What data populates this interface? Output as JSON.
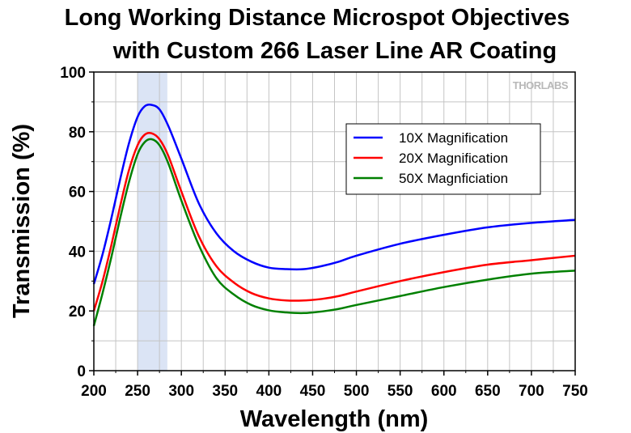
{
  "chart_data": {
    "type": "line",
    "title": [
      "Long Working Distance Microspot Objectives",
      "with Custom 266 Laser Line AR Coating"
    ],
    "xlabel": "Wavelength (nm)",
    "ylabel": "Transmission (%)",
    "xlim": [
      200,
      750
    ],
    "ylim": [
      0,
      100
    ],
    "xticks": [
      200,
      250,
      300,
      350,
      400,
      450,
      500,
      550,
      600,
      650,
      700,
      750
    ],
    "yticks": [
      0,
      20,
      40,
      60,
      80,
      100
    ],
    "grid": true,
    "legend_position": "top-right",
    "highlight_band": [
      250,
      284
    ],
    "highlight_color": "#dbe4f5",
    "watermark": "THORLABS",
    "series": [
      {
        "name": "10X Magnification",
        "color": "#0000ff",
        "x": [
          200,
          210,
          220,
          230,
          240,
          250,
          258,
          266,
          275,
          285,
          300,
          320,
          340,
          360,
          380,
          400,
          420,
          440,
          460,
          480,
          500,
          550,
          600,
          650,
          700,
          750
        ],
        "y": [
          29,
          39,
          51,
          64,
          76,
          85,
          88.5,
          89,
          87.5,
          82,
          71,
          56,
          46,
          40,
          36.5,
          34.5,
          34,
          34,
          35,
          36.5,
          38.5,
          42.5,
          45.5,
          48,
          49.5,
          50.5
        ]
      },
      {
        "name": "20X Magnification",
        "color": "#ff0000",
        "x": [
          200,
          210,
          220,
          230,
          240,
          250,
          258,
          266,
          275,
          285,
          300,
          320,
          340,
          360,
          380,
          400,
          420,
          440,
          460,
          480,
          500,
          550,
          600,
          650,
          700,
          750
        ],
        "y": [
          20,
          30,
          42,
          55,
          67,
          75.5,
          79,
          79.5,
          77.5,
          72,
          60,
          45,
          35,
          29.5,
          26,
          24.2,
          23.5,
          23.5,
          24,
          25,
          26.5,
          30,
          33,
          35.5,
          37,
          38.5
        ]
      },
      {
        "name": "50X Magnficiation",
        "color": "#008000",
        "x": [
          200,
          210,
          220,
          230,
          240,
          250,
          258,
          266,
          275,
          285,
          300,
          320,
          340,
          360,
          380,
          400,
          420,
          440,
          460,
          480,
          500,
          550,
          600,
          650,
          700,
          750
        ],
        "y": [
          15,
          26,
          38,
          51,
          63,
          72.5,
          76.5,
          77.5,
          75.5,
          69.5,
          57,
          42,
          31,
          25.5,
          22,
          20.2,
          19.5,
          19.3,
          19.8,
          20.7,
          22,
          25,
          28,
          30.5,
          32.5,
          33.5
        ]
      }
    ]
  }
}
